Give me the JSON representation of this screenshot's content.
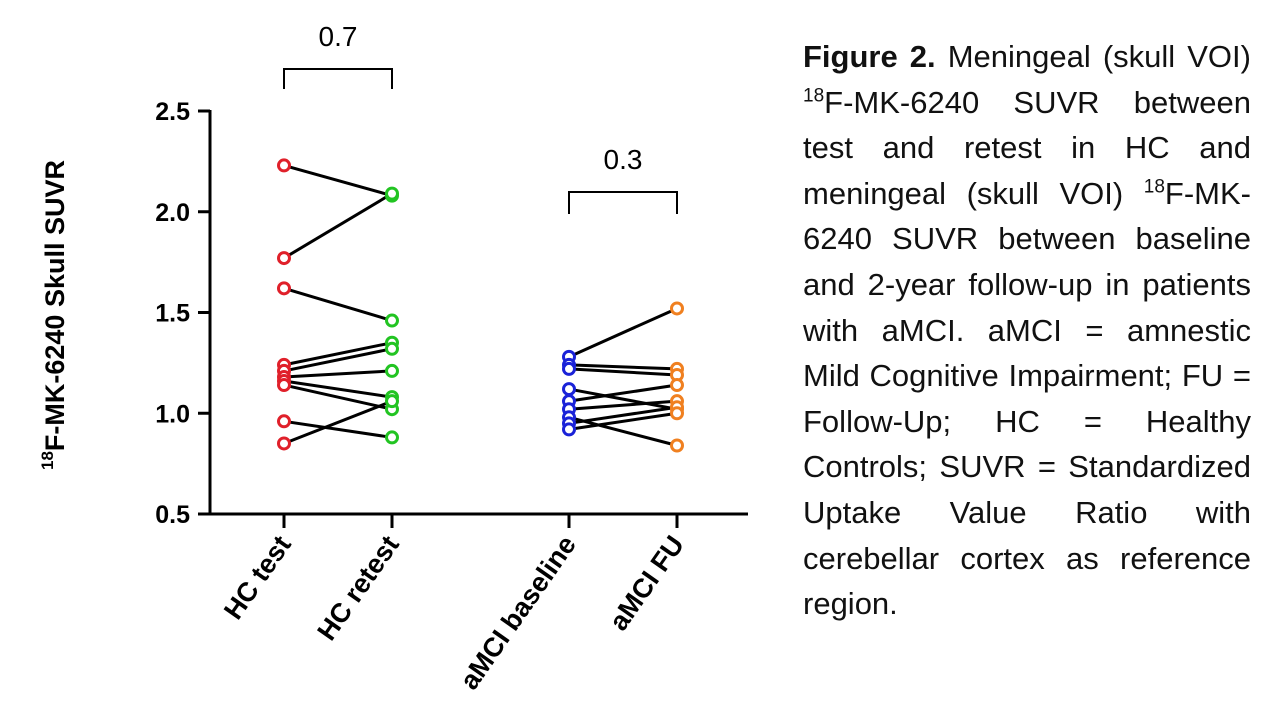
{
  "chart_data": {
    "type": "paired-scatter",
    "ylabel_sup": "18",
    "ylabel_main": "F-MK-6240 Skull SUVR",
    "ylim": [
      0.5,
      2.5
    ],
    "yticks": [
      0.5,
      1.0,
      1.5,
      2.0,
      2.5
    ],
    "ytick_labels": [
      "0.5",
      "1.0",
      "1.5",
      "2.0",
      "2.5"
    ],
    "categories": [
      "HC test",
      "HC retest",
      "aMCI baseline",
      "aMCI FU"
    ],
    "colors": [
      "#e0202a",
      "#22c422",
      "#1a22d8",
      "#f08020"
    ],
    "grid": false,
    "comparisons": [
      {
        "from": 0,
        "to": 1,
        "label": "0.7"
      },
      {
        "from": 2,
        "to": 3,
        "label": "0.3"
      }
    ],
    "pairs": [
      {
        "group": "HC",
        "before": [
          2.23,
          1.77,
          1.62,
          1.24,
          1.21,
          1.18,
          1.16,
          1.14,
          0.96,
          0.85
        ],
        "after": [
          2.08,
          2.09,
          1.46,
          1.35,
          1.32,
          1.21,
          1.08,
          1.02,
          0.88,
          1.06
        ]
      },
      {
        "group": "aMCI",
        "before": [
          1.28,
          1.24,
          1.22,
          1.12,
          1.06,
          1.02,
          0.98,
          0.95,
          0.92
        ],
        "after": [
          1.52,
          1.22,
          1.19,
          1.02,
          1.14,
          1.06,
          0.84,
          1.03,
          1.0
        ]
      }
    ]
  },
  "caption": {
    "label": "Figure 2.",
    "part1": " Meningeal (skull VOI) ",
    "sup1": "18",
    "part2": "F-MK-6240 SUVR between test and retest in HC and meningeal (skull VOI) ",
    "sup2": "18",
    "part3": "F-MK-6240 SUVR between baseline and 2-year follow-up in patients with aMCI. aMCI = amnestic Mild Cognitive Impairment; FU = Follow-Up; HC = Healthy Controls; SUVR = Standardized Uptake Value Ratio with cerebellar cortex as reference region."
  }
}
